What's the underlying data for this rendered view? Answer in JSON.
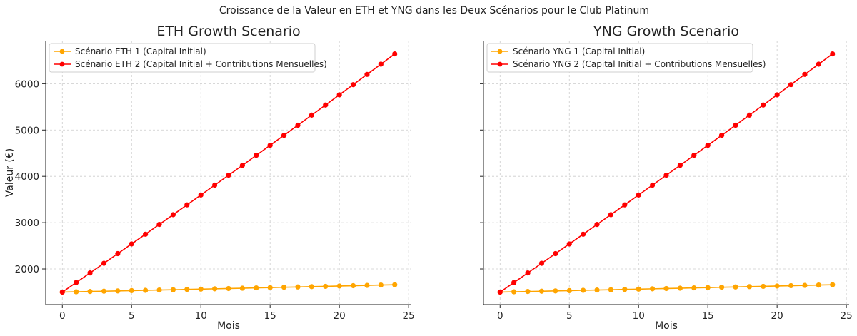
{
  "figure": {
    "suptitle": "Croissance de la Valeur en ETH et YNG dans les Deux Scénarios pour le Club Platinum"
  },
  "colors": {
    "scenario1": "#ffa500",
    "scenario2": "#ff0000"
  },
  "chart_data": [
    {
      "type": "line",
      "title": "ETH Growth Scenario",
      "xlabel": "Mois",
      "ylabel": "Valeur (€)",
      "xlim": [
        -1.2,
        25.2
      ],
      "ylim": [
        1230,
        6930
      ],
      "xticks": [
        0,
        5,
        10,
        15,
        20,
        25
      ],
      "yticks": [
        2000,
        3000,
        4000,
        5000,
        6000
      ],
      "grid": true,
      "legend_position": "top-left",
      "x": [
        0,
        1,
        2,
        3,
        4,
        5,
        6,
        7,
        8,
        9,
        10,
        11,
        12,
        13,
        14,
        15,
        16,
        17,
        18,
        19,
        20,
        21,
        22,
        23,
        24
      ],
      "series": [
        {
          "name": "Scénario ETH 1 (Capital Initial)",
          "color": "#ffa500",
          "values": [
            1500,
            1506,
            1513,
            1519,
            1525,
            1532,
            1538,
            1545,
            1551,
            1558,
            1564,
            1571,
            1577,
            1584,
            1591,
            1597,
            1604,
            1611,
            1618,
            1624,
            1631,
            1638,
            1645,
            1652,
            1659
          ]
        },
        {
          "name": "Scénario ETH 2 (Capital Initial + Contributions Mensuelles)",
          "color": "#ff0000",
          "values": [
            1500,
            1707,
            1914,
            2122,
            2331,
            2540,
            2750,
            2961,
            3172,
            3384,
            3597,
            3810,
            4024,
            4238,
            4454,
            4670,
            4886,
            5104,
            5322,
            5540,
            5760,
            5980,
            6201,
            6422,
            6644
          ]
        }
      ]
    },
    {
      "type": "line",
      "title": "YNG Growth Scenario",
      "xlabel": "Mois",
      "ylabel": "",
      "xlim": [
        -1.2,
        25.2
      ],
      "ylim": [
        1230,
        6930
      ],
      "xticks": [
        0,
        5,
        10,
        15,
        20,
        25
      ],
      "yticks": [
        2000,
        3000,
        4000,
        5000,
        6000
      ],
      "grid": true,
      "legend_position": "top-left",
      "x": [
        0,
        1,
        2,
        3,
        4,
        5,
        6,
        7,
        8,
        9,
        10,
        11,
        12,
        13,
        14,
        15,
        16,
        17,
        18,
        19,
        20,
        21,
        22,
        23,
        24
      ],
      "series": [
        {
          "name": "Scénario YNG 1 (Capital Initial)",
          "color": "#ffa500",
          "values": [
            1500,
            1506,
            1513,
            1519,
            1525,
            1532,
            1538,
            1545,
            1551,
            1558,
            1564,
            1571,
            1577,
            1584,
            1591,
            1597,
            1604,
            1611,
            1618,
            1624,
            1631,
            1638,
            1645,
            1652,
            1659
          ]
        },
        {
          "name": "Scénario YNG 2 (Capital Initial + Contributions Mensuelles)",
          "color": "#ff0000",
          "values": [
            1500,
            1707,
            1914,
            2122,
            2331,
            2540,
            2750,
            2961,
            3172,
            3384,
            3597,
            3810,
            4024,
            4238,
            4454,
            4670,
            4886,
            5104,
            5322,
            5540,
            5760,
            5980,
            6201,
            6422,
            6644
          ]
        }
      ]
    }
  ]
}
